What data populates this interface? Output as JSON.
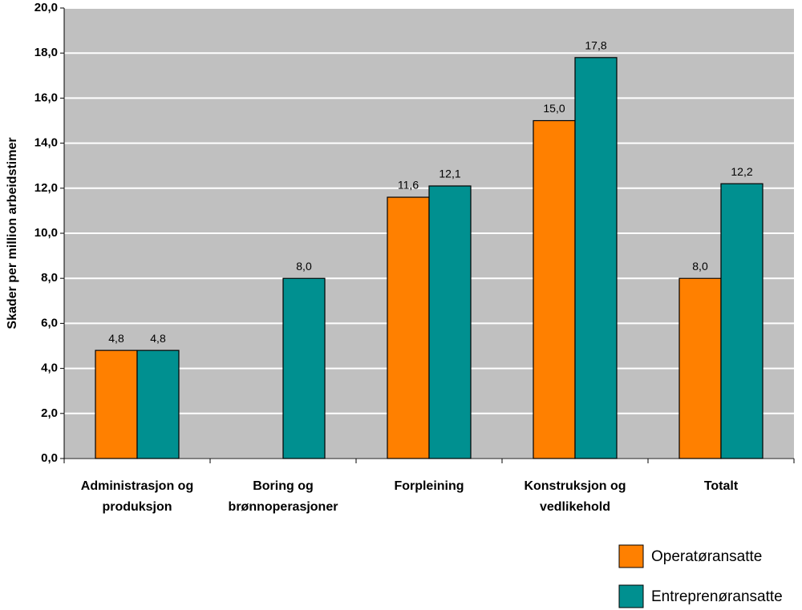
{
  "chart_data": {
    "type": "bar",
    "y_label": "Skader per million arbeidstimer",
    "categories": [
      "Administrasjon og produksjon",
      "Boring og brønnoperasjoner",
      "Forpleining",
      "Konstruksjon og vedlikehold",
      "Totalt"
    ],
    "series": [
      {
        "name": "Operatøransatte",
        "color": "#ff8000",
        "values": [
          4.8,
          null,
          11.6,
          15.0,
          8.0
        ],
        "value_labels": [
          "4,8",
          null,
          "11,6",
          "15,0",
          "8,0"
        ]
      },
      {
        "name": "Entreprenøransatte",
        "color": "#009090",
        "values": [
          4.8,
          8.0,
          12.1,
          17.8,
          12.2
        ],
        "value_labels": [
          "4,8",
          "8,0",
          "12,1",
          "17,8",
          "12,2"
        ]
      }
    ],
    "ylim": [
      0,
      20
    ],
    "yticks": [
      {
        "value": 0,
        "label": "0,0"
      },
      {
        "value": 2,
        "label": "2,0"
      },
      {
        "value": 4,
        "label": "4,0"
      },
      {
        "value": 6,
        "label": "6,0"
      },
      {
        "value": 8,
        "label": "8,0"
      },
      {
        "value": 10,
        "label": "10,0"
      },
      {
        "value": 12,
        "label": "12,0"
      },
      {
        "value": 14,
        "label": "14,0"
      },
      {
        "value": 16,
        "label": "16,0"
      },
      {
        "value": 18,
        "label": "18,0"
      },
      {
        "value": 20,
        "label": "20,0"
      }
    ],
    "grid": true,
    "plot_background": "#c0c0c0",
    "legend": "bottom-right"
  }
}
